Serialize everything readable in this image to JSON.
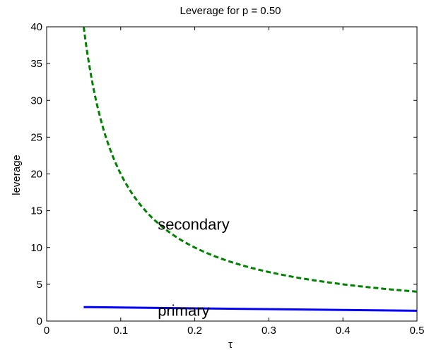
{
  "chart_data": {
    "type": "line",
    "title": "Leverage for p = 0.50",
    "xlabel": "τ",
    "ylabel": "leverage",
    "xlim": [
      0,
      0.5
    ],
    "ylim": [
      0,
      40
    ],
    "grid": false,
    "x_ticks": [
      "0",
      "0.1",
      "0.2",
      "0.3",
      "0.4",
      "0.5"
    ],
    "y_ticks": [
      "0",
      "5",
      "10",
      "15",
      "20",
      "25",
      "30",
      "35",
      "40"
    ],
    "series": [
      {
        "name": "secondary",
        "style": "dashed",
        "color": "#008000",
        "x": [
          0.05,
          0.06,
          0.07,
          0.08,
          0.1,
          0.12,
          0.15,
          0.2,
          0.25,
          0.3,
          0.35,
          0.4,
          0.45,
          0.5
        ],
        "y": [
          40,
          33.4,
          28.6,
          25.0,
          20.0,
          16.6,
          13.3,
          10.0,
          8.0,
          6.7,
          5.7,
          5.0,
          4.4,
          4.0
        ]
      },
      {
        "name": "primary",
        "style": "solid",
        "color": "#0000ff",
        "x": [
          0.05,
          0.5
        ],
        "y": [
          1.9,
          1.4
        ]
      }
    ],
    "annotations": [
      {
        "text": "secondary",
        "x": 0.15,
        "y": 13.2
      },
      {
        "text": "primary",
        "x": 0.15,
        "y": 1.5
      }
    ]
  }
}
